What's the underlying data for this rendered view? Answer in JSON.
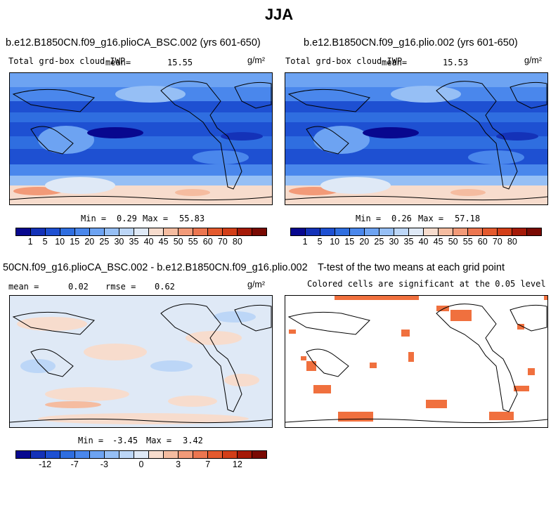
{
  "title": "JJA",
  "panels": {
    "top_left": {
      "case_title": "b.e12.B1850CN.f09_g16.plioCA_BSC.002 (yrs 601-650)",
      "variable": "Total grd-box cloud IWP",
      "mean_label": "mean=",
      "mean_value": "15.55",
      "units": "g/m²",
      "min_label": "Min =",
      "min_value": "0.29",
      "max_label": "Max =",
      "max_value": "55.83"
    },
    "top_right": {
      "case_title": "b.e12.B1850CN.f09_g16.plio.002 (yrs 601-650)",
      "variable": "Total grd-box cloud IWP",
      "mean_label": "mean=",
      "mean_value": "15.53",
      "units": "g/m²",
      "min_label": "Min =",
      "min_value": "0.26",
      "max_label": "Max =",
      "max_value": "57.18"
    },
    "bottom_left": {
      "case_title": "50CN.f09_g16.plioCA_BSC.002 - b.e12.B1850CN.f09_g16.plio.002",
      "mean_label": "mean =",
      "mean_value": "0.02",
      "rmse_label": "rmse =",
      "rmse_value": "0.62",
      "units": "g/m²",
      "min_label": "Min =",
      "min_value": "-3.45",
      "max_label": "Max =",
      "max_value": "3.42"
    },
    "bottom_right": {
      "case_title": "T-test of the two means at each grid point",
      "subtitle": "Colored cells are significant at the 0.05 level"
    }
  },
  "colorbars": {
    "absolute": {
      "colors": [
        "#08088f",
        "#1432b8",
        "#1e50d2",
        "#2f6ee0",
        "#4a87ec",
        "#6da3f2",
        "#96bff5",
        "#bcd6f7",
        "#dfe9f6",
        "#f7dccd",
        "#f5bca0",
        "#f29a78",
        "#ec7650",
        "#e45a2e",
        "#d23e18",
        "#a51a08",
        "#7a0a03"
      ],
      "labels": [
        "1",
        "5",
        "10",
        "15",
        "20",
        "25",
        "30",
        "35",
        "40",
        "45",
        "50",
        "55",
        "60",
        "70",
        "80"
      ]
    },
    "difference": {
      "colors": [
        "#08088f",
        "#1432b8",
        "#1e50d2",
        "#2f6ee0",
        "#4a87ec",
        "#6da3f2",
        "#96bff5",
        "#bcd6f7",
        "#dfe9f6",
        "#f7dccd",
        "#f5bca0",
        "#f29a78",
        "#ec7650",
        "#e45a2e",
        "#d23e18",
        "#a51a08",
        "#7a0a03"
      ],
      "labels": [
        "-12",
        "-7",
        "-3",
        "0",
        "3",
        "7",
        "12"
      ]
    }
  },
  "colors": {
    "sig_cells": "#f0703e",
    "map_base_top": "#2f6ee0",
    "map_base_diff": "#e7eefb"
  }
}
